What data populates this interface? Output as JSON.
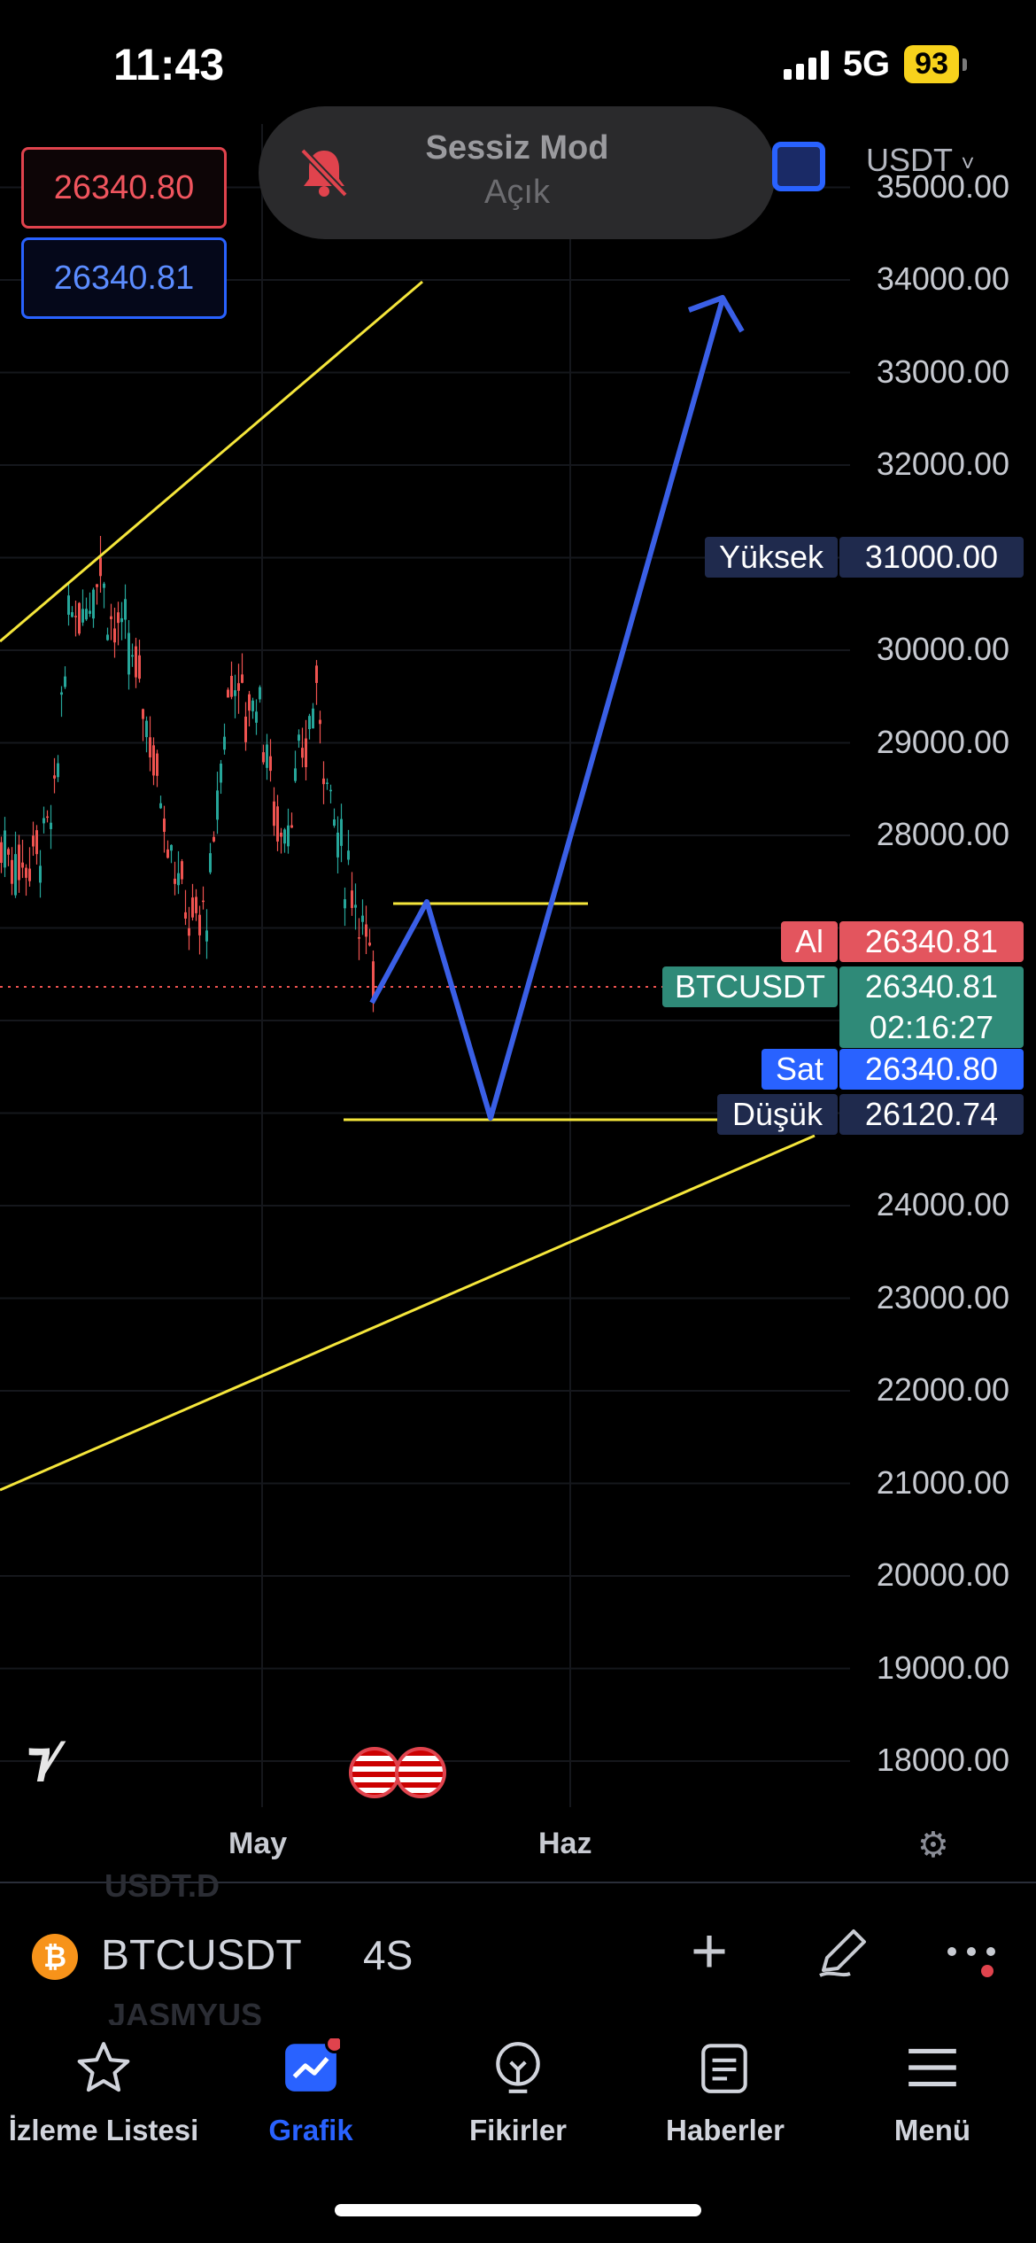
{
  "status_bar": {
    "time": "11:43",
    "network": "5G",
    "battery": "93"
  },
  "toast": {
    "title": "Sessiz Mod",
    "subtitle": "Açık"
  },
  "chart": {
    "currency": "USDT",
    "ask_price": "26340.80",
    "bid_price": "26340.81",
    "y_axis": [
      "35000.00",
      "34000.00",
      "33000.00",
      "32000.00",
      "30000.00",
      "29000.00",
      "28000.00",
      "24000.00",
      "23000.00",
      "22000.00",
      "21000.00",
      "20000.00",
      "19000.00",
      "18000.00"
    ],
    "tags": {
      "high_label": "Yüksek",
      "high_value": "31000.00",
      "buy_label": "Al",
      "buy_value": "26340.81",
      "symbol_label": "BTCUSDT",
      "last_value": "26340.81",
      "countdown": "02:16:27",
      "sell_label": "Sat",
      "sell_value": "26340.80",
      "low_label": "Düşük",
      "low_value": "26120.74"
    },
    "x_axis": [
      "May",
      "Haz"
    ],
    "colors": {
      "up": "#26a69a",
      "down": "#ef5350",
      "drawing": "#3a5fe6",
      "trend": "#f5e63b"
    }
  },
  "chart_data": {
    "type": "candlestick",
    "ylim": [
      17500,
      35200
    ],
    "x_ticks": [
      "May",
      "Haz"
    ],
    "last_price": 26340.81,
    "high": 31000.0,
    "low": 26120.74
  },
  "toolbar": {
    "symbol": "BTCUSDT",
    "interval": "4S",
    "ghost_top": "USDT.D",
    "ghost_bottom": "JASMYUS",
    "icons": [
      "plus-icon",
      "pen-icon",
      "more-icon"
    ]
  },
  "nav": [
    {
      "label": "İzleme Listesi",
      "icon": "star-icon"
    },
    {
      "label": "Grafik",
      "icon": "chart-icon"
    },
    {
      "label": "Fikirler",
      "icon": "lightbulb-icon"
    },
    {
      "label": "Haberler",
      "icon": "news-icon"
    },
    {
      "label": "Menü",
      "icon": "menu-icon"
    }
  ]
}
